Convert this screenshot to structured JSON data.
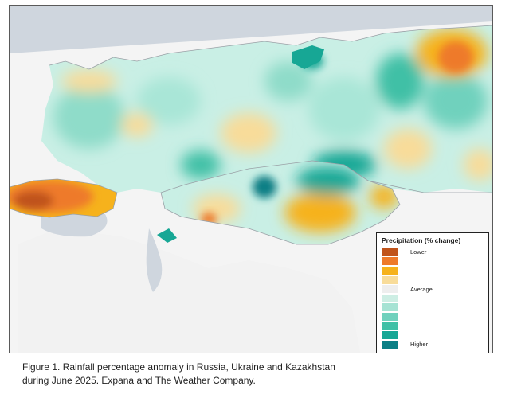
{
  "legend": {
    "title": "Precipitation (% change)",
    "swatches": [
      {
        "color": "#c0531a",
        "label": "Lower"
      },
      {
        "color": "#ee7a2a",
        "label": ""
      },
      {
        "color": "#f6b21c",
        "label": ""
      },
      {
        "color": "#f8dc9a",
        "label": ""
      },
      {
        "color": "#eeeeee",
        "label": "Average"
      },
      {
        "color": "#cdeee4",
        "label": ""
      },
      {
        "color": "#a6e3d4",
        "label": ""
      },
      {
        "color": "#6fd1bd",
        "label": ""
      },
      {
        "color": "#3fc0a6",
        "label": ""
      },
      {
        "color": "#17a795",
        "label": ""
      },
      {
        "color": "#0b7f85",
        "label": "Higher"
      }
    ]
  },
  "caption": {
    "line1": "Figure 1. Rainfall percentage anomaly in Russia, Ukraine and Kazakhstan",
    "line2": "during June 2025. Expana and The Weather Company."
  },
  "colors": {
    "sea": "#cfd6de",
    "land_outside": "#f4f4f4",
    "border": "#9aa0a6"
  }
}
